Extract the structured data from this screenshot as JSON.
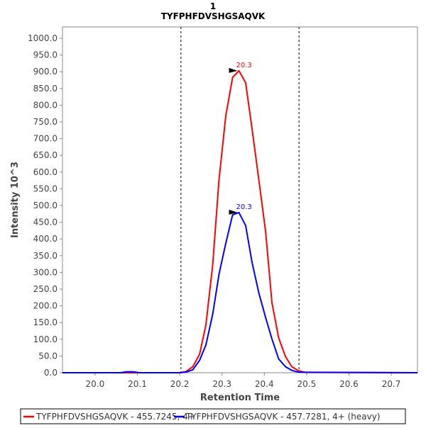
{
  "chart_data": {
    "type": "line",
    "title": "1",
    "subtitle": "TYFPHFDVSHGSAQVK",
    "xlabel": "Retention Time",
    "ylabel": "Intensity 10^3",
    "xlim": [
      19.923,
      20.762
    ],
    "ylim": [
      0,
      1034
    ],
    "xticks": [
      20.0,
      20.1,
      20.2,
      20.3,
      20.4,
      20.5,
      20.6,
      20.7
    ],
    "xtick_labels": [
      "20.0",
      "20.1",
      "20.2",
      "20.3",
      "20.4",
      "20.5",
      "20.6",
      "20.7"
    ],
    "yticks": [
      0,
      50,
      100,
      150,
      200,
      250,
      300,
      350,
      400,
      450,
      500,
      550,
      600,
      650,
      700,
      750,
      800,
      850,
      900,
      950,
      1000
    ],
    "ytick_labels": [
      "0.0",
      "50.0",
      "100.0",
      "150.0",
      "200.0",
      "250.0",
      "300.0",
      "350.0",
      "400.0",
      "450.0",
      "500.0",
      "550.0",
      "600.0",
      "650.0",
      "700.0",
      "750.0",
      "800.0",
      "850.0",
      "900.0",
      "950.0",
      "1000.0"
    ],
    "integration_boundaries": [
      20.203,
      20.482
    ],
    "legend_position": "bottom",
    "grid": false,
    "series": [
      {
        "name": "TYFPHFDVSHGSAQVK - 455.7245, 4+",
        "color": "#ff0000",
        "x": [
          19.923,
          20.2,
          20.215,
          20.231,
          20.247,
          20.262,
          20.278,
          20.293,
          20.309,
          20.325,
          20.34,
          20.356,
          20.371,
          20.387,
          20.403,
          20.418,
          20.434,
          20.45,
          20.465,
          20.481,
          20.496,
          20.762
        ],
        "y": [
          0,
          0,
          3.5,
          18,
          55,
          143,
          323,
          578,
          768,
          883,
          903,
          867,
          729,
          578,
          422,
          210,
          104,
          48,
          18,
          6,
          1.5,
          0
        ],
        "peak_label": "20.3",
        "peak": [
          20.34,
          903
        ]
      },
      {
        "name": "TYFPHFDVSHGSAQVK - 457.7281, 4+ (heavy)",
        "color": "#0000ff",
        "x": [
          19.923,
          20.06,
          20.075,
          20.09,
          20.105,
          20.2,
          20.215,
          20.231,
          20.247,
          20.262,
          20.278,
          20.293,
          20.309,
          20.325,
          20.34,
          20.356,
          20.371,
          20.387,
          20.403,
          20.418,
          20.434,
          20.45,
          20.465,
          20.481,
          20.496,
          20.762
        ],
        "y": [
          0,
          0,
          3,
          3,
          0,
          0,
          2,
          9,
          37,
          83,
          175,
          295,
          387,
          472,
          479,
          440,
          330,
          239,
          165,
          101,
          41,
          18,
          7,
          2,
          1,
          0
        ],
        "peak_label": "20.3",
        "peak": [
          20.34,
          479
        ]
      }
    ]
  }
}
